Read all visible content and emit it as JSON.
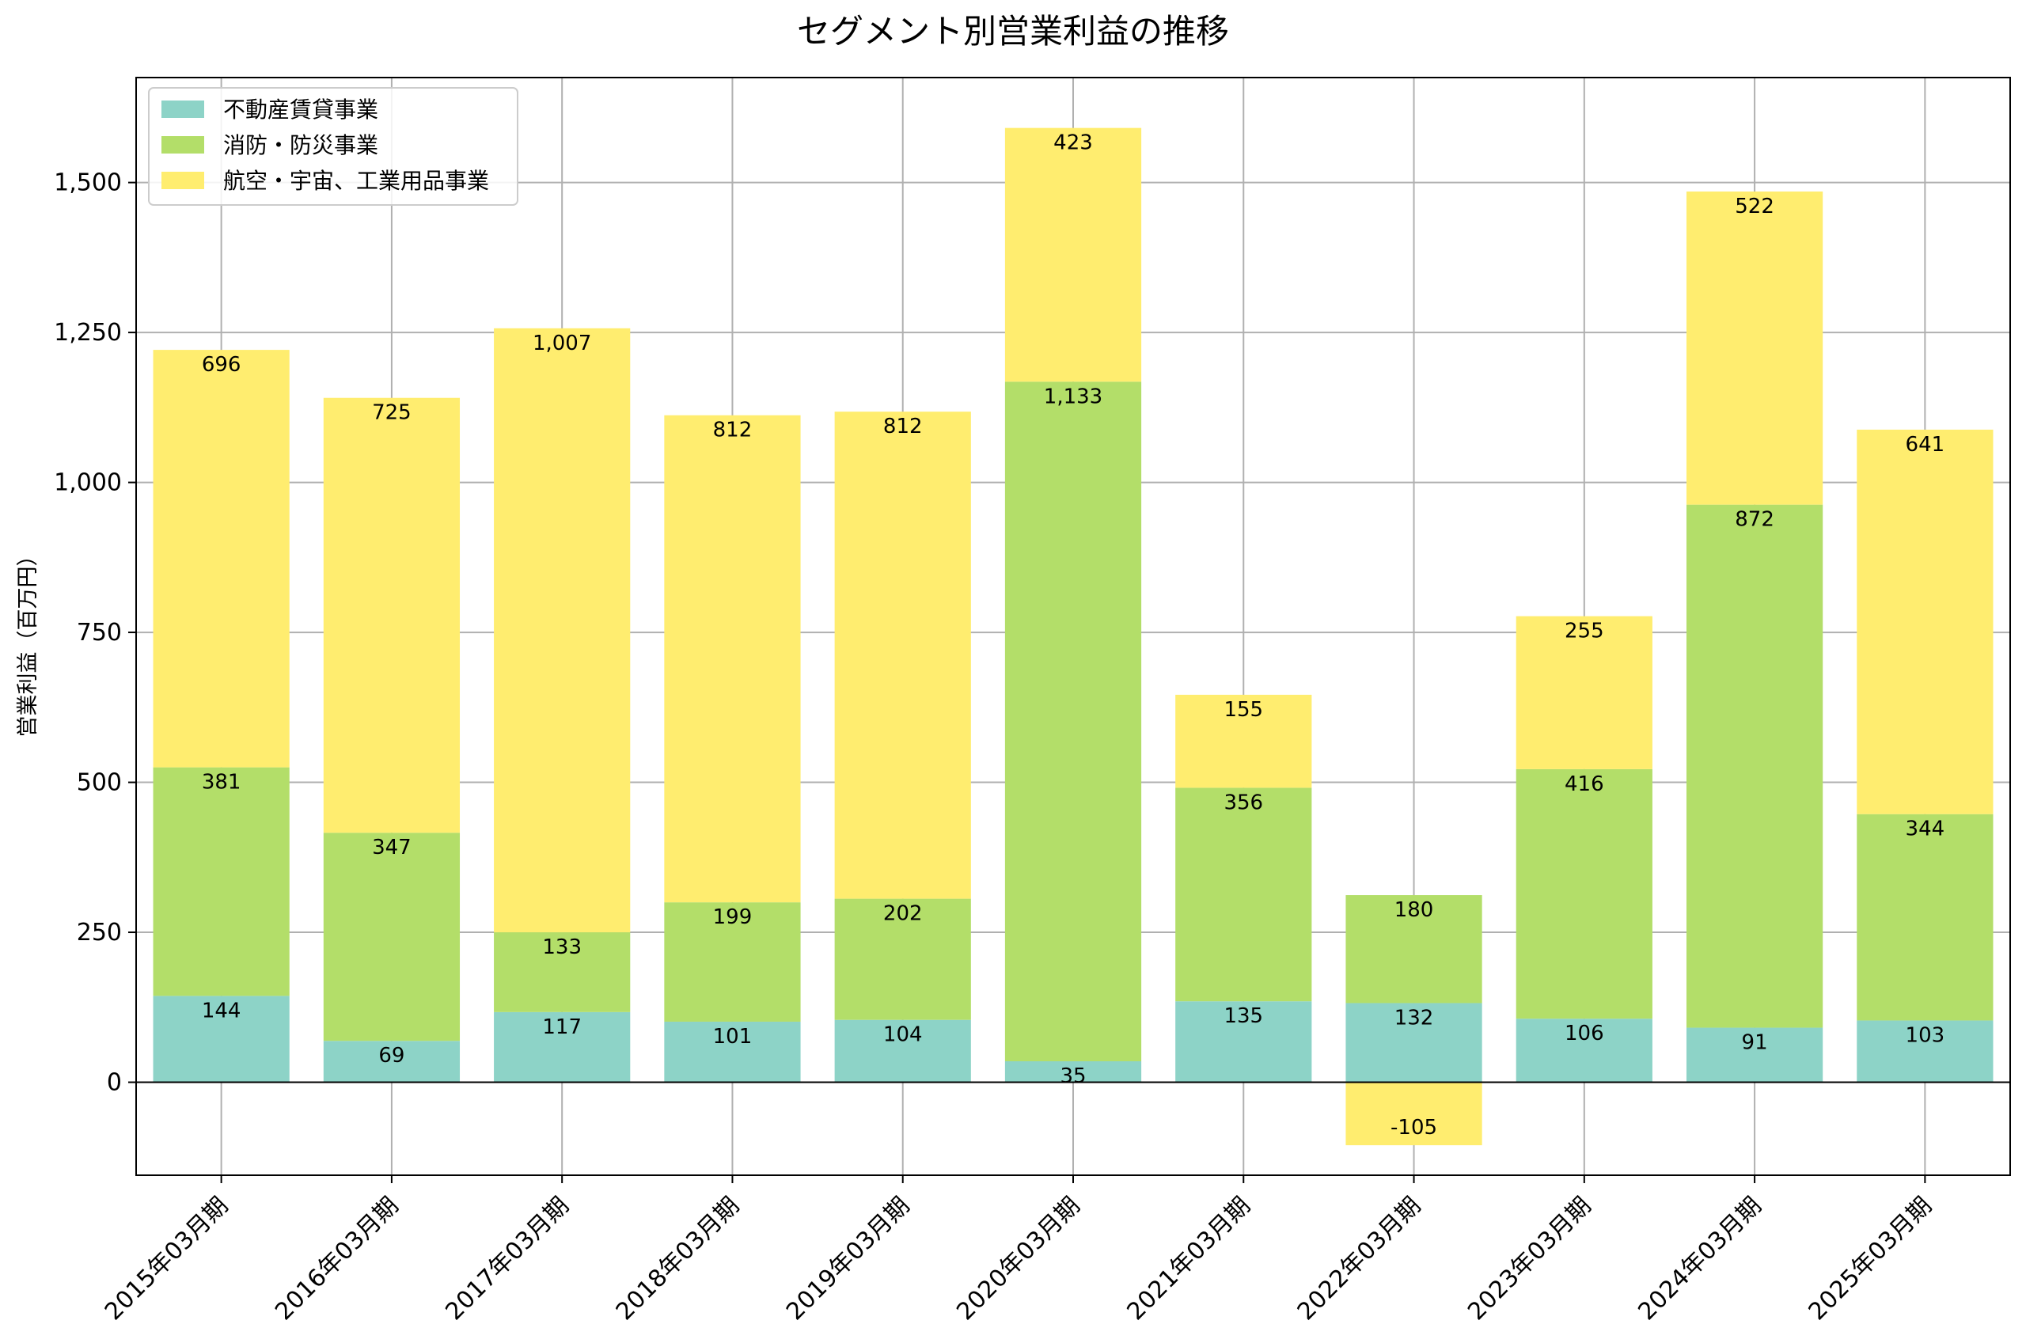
{
  "chart_data": {
    "type": "bar",
    "stacked": true,
    "title": "セグメント別営業利益の推移",
    "xlabel": "",
    "ylabel": "営業利益（百万円）",
    "ylim": [
      -155,
      1675
    ],
    "yticks": [
      0,
      250,
      500,
      750,
      1000,
      1250,
      1500
    ],
    "ytick_labels": [
      "0",
      "250",
      "500",
      "750",
      "1,000",
      "1,250",
      "1,500"
    ],
    "grid": true,
    "legend_position": "top-left",
    "categories": [
      "2015年03月期",
      "2016年03月期",
      "2017年03月期",
      "2018年03月期",
      "2019年03月期",
      "2020年03月期",
      "2021年03月期",
      "2022年03月期",
      "2023年03月期",
      "2024年03月期",
      "2025年03月期"
    ],
    "series": [
      {
        "name": "不動産賃貸事業",
        "color": "#8dd3c7",
        "values": [
          144,
          69,
          117,
          101,
          104,
          35,
          135,
          132,
          106,
          91,
          103
        ],
        "labels": [
          "144",
          "69",
          "117",
          "101",
          "104",
          "35",
          "135",
          "132",
          "106",
          "91",
          "103"
        ]
      },
      {
        "name": "消防・防災事業",
        "color": "#b3de69",
        "values": [
          381,
          347,
          133,
          199,
          202,
          1133,
          356,
          180,
          416,
          872,
          344
        ],
        "labels": [
          "381",
          "347",
          "133",
          "199",
          "202",
          "1,133",
          "356",
          "180",
          "416",
          "872",
          "344"
        ]
      },
      {
        "name": "航空・宇宙、工業用品事業",
        "color": "#ffed6f",
        "values": [
          696,
          725,
          1007,
          812,
          812,
          423,
          155,
          -105,
          255,
          522,
          641
        ],
        "labels": [
          "696",
          "725",
          "1,007",
          "812",
          "812",
          "423",
          "155",
          "-105",
          "255",
          "522",
          "641"
        ]
      }
    ]
  }
}
